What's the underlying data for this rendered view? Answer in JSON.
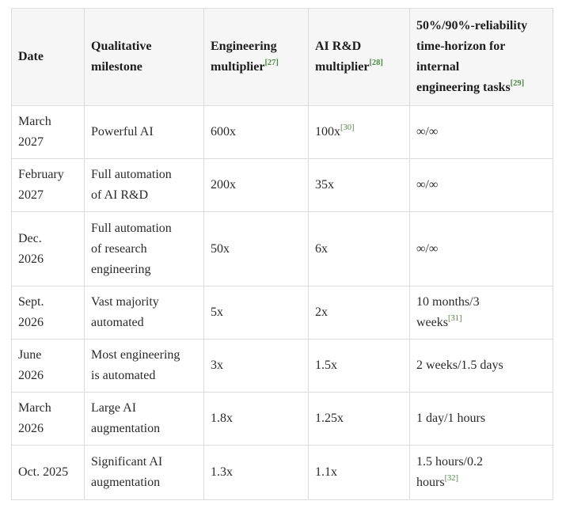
{
  "colors": {
    "footnote_green": "#4a8c3f",
    "header_background": "#f6f6f6",
    "cell_border": "#dcdcdc",
    "outer_border": "#cfcfcf",
    "text": "#2a2a2a"
  },
  "table": {
    "columns": [
      {
        "label": "Date",
        "footnote": ""
      },
      {
        "label": "Qualitative\nmilestone",
        "footnote": ""
      },
      {
        "label": "Engineering\nmultiplier",
        "footnote": "[27]"
      },
      {
        "label": "AI R&D\nmultiplier",
        "footnote": "[28]"
      },
      {
        "label": "50%/90%-reliability\ntime-horizon for\ninternal\nengineering tasks",
        "footnote": "[29]"
      }
    ],
    "rows": [
      {
        "cells": [
          {
            "text": "March\n2027",
            "footnote": ""
          },
          {
            "text": "Powerful AI",
            "footnote": ""
          },
          {
            "text": "600x",
            "footnote": ""
          },
          {
            "text": "100x",
            "footnote": "[30]"
          },
          {
            "text": "∞/∞",
            "footnote": ""
          }
        ]
      },
      {
        "cells": [
          {
            "text": "February\n2027",
            "footnote": ""
          },
          {
            "text": "Full automation\nof AI R&D",
            "footnote": ""
          },
          {
            "text": "200x",
            "footnote": ""
          },
          {
            "text": "35x",
            "footnote": ""
          },
          {
            "text": "∞/∞",
            "footnote": ""
          }
        ]
      },
      {
        "cells": [
          {
            "text": "Dec.\n2026",
            "footnote": ""
          },
          {
            "text": "Full automation\nof research\nengineering",
            "footnote": ""
          },
          {
            "text": "50x",
            "footnote": ""
          },
          {
            "text": "6x",
            "footnote": ""
          },
          {
            "text": "∞/∞",
            "footnote": ""
          }
        ]
      },
      {
        "cells": [
          {
            "text": "Sept.\n2026",
            "footnote": ""
          },
          {
            "text": "Vast majority\nautomated",
            "footnote": ""
          },
          {
            "text": "5x",
            "footnote": ""
          },
          {
            "text": "2x",
            "footnote": ""
          },
          {
            "text": "10 months/3\nweeks",
            "footnote": "[31]"
          }
        ]
      },
      {
        "cells": [
          {
            "text": "June\n2026",
            "footnote": ""
          },
          {
            "text": "Most engineering\nis automated",
            "footnote": ""
          },
          {
            "text": "3x",
            "footnote": ""
          },
          {
            "text": "1.5x",
            "footnote": ""
          },
          {
            "text": "2 weeks/1.5 days",
            "footnote": ""
          }
        ]
      },
      {
        "cells": [
          {
            "text": "March\n2026",
            "footnote": ""
          },
          {
            "text": "Large AI\naugmentation",
            "footnote": ""
          },
          {
            "text": "1.8x",
            "footnote": ""
          },
          {
            "text": "1.25x",
            "footnote": ""
          },
          {
            "text": "1 day/1 hours",
            "footnote": ""
          }
        ]
      },
      {
        "cells": [
          {
            "text": "Oct. 2025",
            "footnote": ""
          },
          {
            "text": "Significant AI\naugmentation",
            "footnote": ""
          },
          {
            "text": "1.3x",
            "footnote": ""
          },
          {
            "text": "1.1x",
            "footnote": ""
          },
          {
            "text": "1.5 hours/0.2\nhours",
            "footnote": "[32]"
          }
        ]
      }
    ]
  }
}
